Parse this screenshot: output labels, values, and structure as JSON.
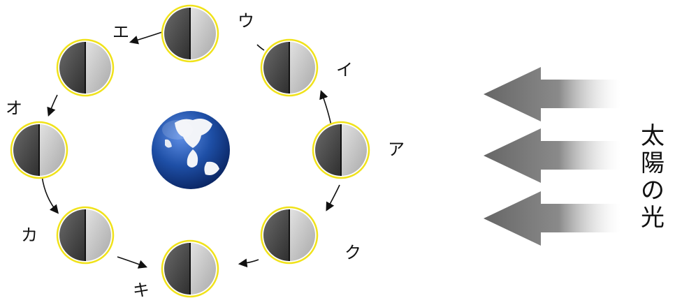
{
  "diagram": {
    "orbit_positions": [
      {
        "id": "a",
        "label": "ア"
      },
      {
        "id": "i",
        "label": "イ"
      },
      {
        "id": "u",
        "label": "ウ"
      },
      {
        "id": "e",
        "label": "エ"
      },
      {
        "id": "o",
        "label": "オ"
      },
      {
        "id": "ka",
        "label": "カ"
      },
      {
        "id": "ki",
        "label": "キ"
      },
      {
        "id": "ku",
        "label": "ク"
      }
    ],
    "sunlight_label": [
      "太",
      "陽",
      "の",
      "光"
    ],
    "colors": {
      "moon_outline": "#f0e21a",
      "moon_dark_half": "#4a4a4a",
      "moon_lit_half": "#c9c9c9",
      "earth_ocean": "#1e4fa6",
      "earth_land": "#ffffff",
      "arrow_fill": "#6e6e6e"
    },
    "icons": [
      "moon-icon",
      "earth-icon",
      "sunlight-arrow-icon",
      "orbit-arrow-icon"
    ]
  }
}
